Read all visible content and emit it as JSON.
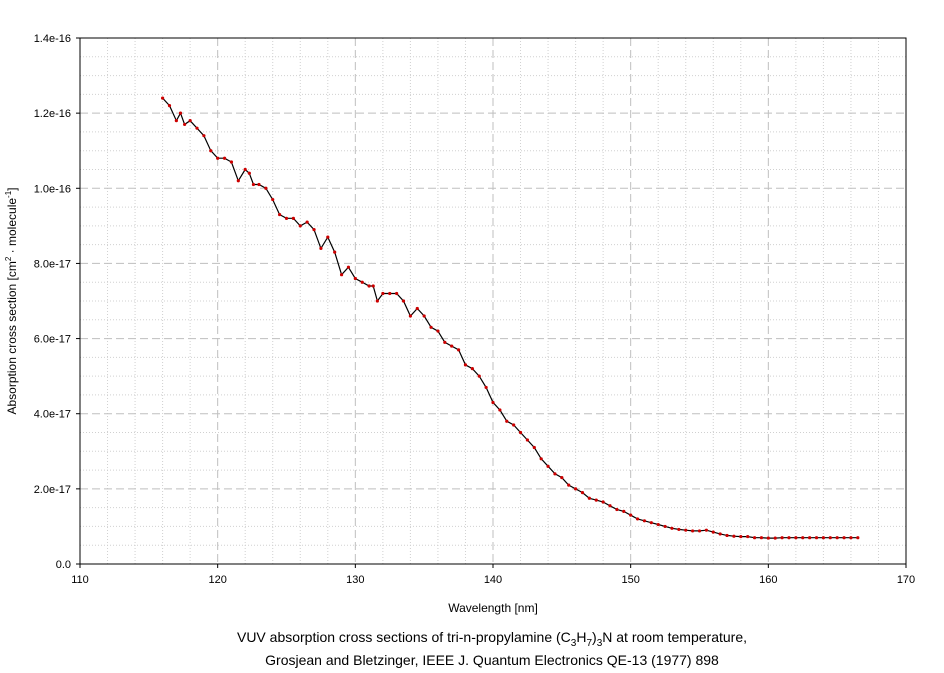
{
  "chart_data": {
    "type": "line",
    "xlabel": "Wavelength [nm]",
    "ylabel_parts": [
      "Absorption cross section [cm",
      "2",
      " · molecule",
      "-1",
      "]"
    ],
    "xlim": [
      110,
      170
    ],
    "ylim": [
      0,
      1.4e-16
    ],
    "x_ticks": [
      110,
      120,
      130,
      140,
      150,
      160,
      170
    ],
    "y_ticks": [
      0,
      2e-17,
      4e-17,
      6e-17,
      8e-17,
      1e-16,
      1.2e-16,
      1.4e-16
    ],
    "x_tick_labels": [
      "110",
      "120",
      "130",
      "140",
      "150",
      "160",
      "170"
    ],
    "y_tick_labels": [
      "0.0",
      "2.0e-17",
      "4.0e-17",
      "6.0e-17",
      "8.0e-17",
      "1.0e-16",
      "1.2e-16",
      "1.4e-16"
    ],
    "grid": true,
    "line_color": "#000000",
    "marker_color": "#cc0000",
    "series": [
      {
        "x": [
          116.0,
          116.5,
          117.0,
          117.3,
          117.6,
          118.0,
          118.5,
          119.0,
          119.5,
          120.0,
          120.5,
          121.0,
          121.5,
          122.0,
          122.3,
          122.6,
          123.0,
          123.5,
          124.0,
          124.5,
          125.0,
          125.5,
          126.0,
          126.5,
          127.0,
          127.5,
          128.0,
          128.5,
          129.0,
          129.5,
          130.0,
          130.5,
          131.0,
          131.3,
          131.6,
          132.0,
          132.5,
          133.0,
          133.5,
          134.0,
          134.5,
          135.0,
          135.5,
          136.0,
          136.5,
          137.0,
          137.5,
          138.0,
          138.5,
          139.0,
          139.5,
          140.0,
          140.5,
          141.0,
          141.5,
          142.0,
          142.5,
          143.0,
          143.5,
          144.0,
          144.5,
          145.0,
          145.5,
          146.0,
          146.5,
          147.0,
          147.5,
          148.0,
          148.5,
          149.0,
          149.5,
          150.0,
          150.5,
          151.0,
          151.5,
          152.0,
          152.5,
          153.0,
          153.5,
          154.0,
          154.5,
          155.0,
          155.5,
          156.0,
          156.5,
          157.0,
          157.5,
          158.0,
          158.5,
          159.0,
          159.5,
          160.0,
          160.5,
          161.0,
          161.5,
          162.0,
          162.5,
          163.0,
          163.5,
          164.0,
          164.5,
          165.0,
          165.5,
          166.0,
          166.5
        ],
        "y": [
          1.24e-16,
          1.22e-16,
          1.18e-16,
          1.2e-16,
          1.17e-16,
          1.18e-16,
          1.16e-16,
          1.14e-16,
          1.1e-16,
          1.08e-16,
          1.08e-16,
          1.07e-16,
          1.02e-16,
          1.05e-16,
          1.04e-16,
          1.01e-16,
          1.01e-16,
          1e-16,
          9.7e-17,
          9.3e-17,
          9.2e-17,
          9.2e-17,
          9e-17,
          9.1e-17,
          8.9e-17,
          8.4e-17,
          8.7e-17,
          8.3e-17,
          7.7e-17,
          7.9e-17,
          7.6e-17,
          7.5e-17,
          7.4e-17,
          7.4e-17,
          7e-17,
          7.2e-17,
          7.2e-17,
          7.2e-17,
          7e-17,
          6.6e-17,
          6.8e-17,
          6.6e-17,
          6.3e-17,
          6.2e-17,
          5.9e-17,
          5.8e-17,
          5.7e-17,
          5.3e-17,
          5.2e-17,
          5e-17,
          4.7e-17,
          4.3e-17,
          4.1e-17,
          3.8e-17,
          3.7e-17,
          3.5e-17,
          3.3e-17,
          3.1e-17,
          2.8e-17,
          2.6e-17,
          2.4e-17,
          2.3e-17,
          2.1e-17,
          2e-17,
          1.9e-17,
          1.75e-17,
          1.7e-17,
          1.65e-17,
          1.55e-17,
          1.45e-17,
          1.4e-17,
          1.3e-17,
          1.2e-17,
          1.15e-17,
          1.1e-17,
          1.05e-17,
          1e-17,
          9.5e-18,
          9.2e-18,
          9e-18,
          8.8e-18,
          8.8e-18,
          9e-18,
          8.5e-18,
          8e-18,
          7.6e-18,
          7.4e-18,
          7.3e-18,
          7.3e-18,
          7e-18,
          7e-18,
          6.9e-18,
          6.9e-18,
          7e-18,
          7e-18,
          7e-18,
          7e-18,
          7e-18,
          7e-18,
          7e-18,
          7e-18,
          7e-18,
          7e-18,
          7e-18,
          7e-18
        ]
      }
    ]
  },
  "caption": {
    "line1_a": "VUV absorption cross sections of tri-n-propylamine (C",
    "sub1": "3",
    "line1_b": "H",
    "sub2": "7",
    "line1_c": ")",
    "sub3": "3",
    "line1_d": "N at room temperature,",
    "line2": "Grosjean and Bletzinger, IEEE J. Quantum Electronics QE-13 (1977) 898"
  }
}
